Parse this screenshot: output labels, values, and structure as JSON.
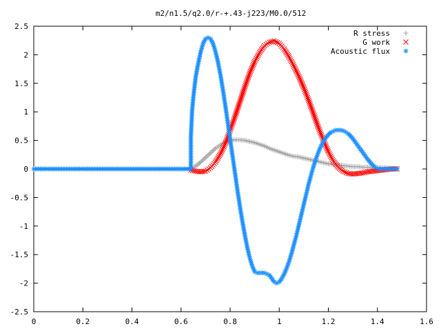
{
  "chart_data": {
    "type": "scatter",
    "title": "m2/n1.5/q2.0/r-+.43-j223/M0.0/512",
    "xlabel": "",
    "ylabel": "",
    "xlim": [
      0,
      1.6
    ],
    "ylim": [
      -2.5,
      2.5
    ],
    "x_ticks": [
      "0",
      "0.2",
      "0.4",
      "0.6",
      "0.8",
      "1",
      "1.2",
      "1.4",
      "1.6"
    ],
    "y_ticks": [
      "2.5",
      "2",
      "1.5",
      "1",
      "0.5",
      "0",
      "-0.5",
      "-1",
      "-1.5",
      "-2",
      "-2.5"
    ],
    "grid": false,
    "legend_position": "top-right",
    "series": [
      {
        "name": "R stress",
        "marker": "+",
        "color": "#a0a0a0",
        "x": [
          0.64,
          0.66,
          0.68,
          0.7,
          0.72,
          0.74,
          0.76,
          0.78,
          0.8,
          0.82,
          0.84,
          0.86,
          0.88,
          0.9,
          0.92,
          0.94,
          0.96,
          0.98,
          1.0,
          1.02,
          1.04,
          1.06,
          1.08,
          1.1,
          1.12,
          1.14,
          1.16,
          1.18,
          1.2,
          1.22,
          1.24,
          1.26,
          1.28,
          1.3,
          1.32,
          1.34,
          1.36,
          1.38,
          1.4,
          1.42,
          1.44,
          1.46,
          1.48
        ],
        "y": [
          0.0,
          0.05,
          0.12,
          0.2,
          0.28,
          0.36,
          0.42,
          0.47,
          0.5,
          0.51,
          0.51,
          0.5,
          0.48,
          0.46,
          0.43,
          0.4,
          0.36,
          0.33,
          0.3,
          0.27,
          0.24,
          0.22,
          0.21,
          0.19,
          0.17,
          0.15,
          0.13,
          0.11,
          0.09,
          0.08,
          0.07,
          0.06,
          0.05,
          0.04,
          0.04,
          0.03,
          0.03,
          0.02,
          0.02,
          0.02,
          0.02,
          0.01,
          0.01
        ]
      },
      {
        "name": "G work",
        "marker": "x",
        "color": "#ff0000",
        "x": [
          0.64,
          0.66,
          0.68,
          0.7,
          0.72,
          0.74,
          0.76,
          0.78,
          0.8,
          0.82,
          0.84,
          0.86,
          0.88,
          0.9,
          0.92,
          0.94,
          0.96,
          0.98,
          1.0,
          1.02,
          1.04,
          1.06,
          1.08,
          1.1,
          1.12,
          1.14,
          1.16,
          1.18,
          1.2,
          1.22,
          1.24,
          1.26,
          1.28,
          1.3,
          1.32,
          1.34,
          1.36,
          1.38,
          1.4,
          1.42,
          1.44,
          1.46,
          1.48
        ],
        "y": [
          -0.02,
          -0.04,
          -0.05,
          -0.04,
          0.02,
          0.12,
          0.26,
          0.44,
          0.68,
          0.92,
          1.18,
          1.44,
          1.68,
          1.88,
          2.04,
          2.16,
          2.22,
          2.24,
          2.2,
          2.1,
          1.96,
          1.8,
          1.62,
          1.42,
          1.2,
          0.96,
          0.72,
          0.5,
          0.3,
          0.14,
          0.03,
          -0.04,
          -0.08,
          -0.09,
          -0.08,
          -0.07,
          -0.05,
          -0.04,
          -0.03,
          -0.02,
          -0.01,
          0.0,
          0.0
        ]
      },
      {
        "name": "Acoustic flux",
        "marker": "*",
        "color": "#1e90ff",
        "x": [
          0.0,
          0.04,
          0.08,
          0.12,
          0.16,
          0.2,
          0.24,
          0.28,
          0.32,
          0.36,
          0.4,
          0.44,
          0.48,
          0.52,
          0.56,
          0.6,
          0.64,
          0.64,
          0.645,
          0.65,
          0.655,
          0.66,
          0.67,
          0.68,
          0.69,
          0.7,
          0.71,
          0.72,
          0.73,
          0.74,
          0.75,
          0.76,
          0.77,
          0.78,
          0.79,
          0.8,
          0.81,
          0.82,
          0.83,
          0.84,
          0.85,
          0.86,
          0.87,
          0.88,
          0.89,
          0.9,
          0.91,
          0.92,
          0.93,
          0.94,
          0.95,
          0.96,
          0.97,
          0.98,
          0.99,
          1.0,
          1.01,
          1.02,
          1.03,
          1.04,
          1.05,
          1.06,
          1.07,
          1.08,
          1.09,
          1.1,
          1.11,
          1.12,
          1.13,
          1.14,
          1.15,
          1.16,
          1.17,
          1.18,
          1.19,
          1.2,
          1.21,
          1.22,
          1.23,
          1.24,
          1.25,
          1.26,
          1.27,
          1.28,
          1.29,
          1.3,
          1.31,
          1.32,
          1.33,
          1.34,
          1.35,
          1.36,
          1.37,
          1.38,
          1.39,
          1.4,
          1.41,
          1.42,
          1.43,
          1.44,
          1.45,
          1.46,
          1.47,
          1.48
        ],
        "y": [
          0.0,
          0.0,
          0.0,
          0.0,
          0.0,
          0.0,
          0.0,
          0.0,
          0.0,
          0.0,
          0.0,
          0.0,
          0.0,
          0.0,
          0.0,
          0.0,
          0.0,
          0.55,
          1.02,
          1.25,
          1.45,
          1.62,
          1.85,
          2.05,
          2.2,
          2.28,
          2.3,
          2.28,
          2.2,
          2.06,
          1.88,
          1.66,
          1.4,
          1.12,
          0.82,
          0.52,
          0.22,
          -0.08,
          -0.38,
          -0.66,
          -0.92,
          -1.16,
          -1.38,
          -1.56,
          -1.7,
          -1.8,
          -1.82,
          -1.82,
          -1.82,
          -1.82,
          -1.84,
          -1.86,
          -1.92,
          -1.98,
          -2.0,
          -1.98,
          -1.92,
          -1.84,
          -1.74,
          -1.62,
          -1.48,
          -1.32,
          -1.16,
          -0.98,
          -0.8,
          -0.62,
          -0.44,
          -0.26,
          -0.1,
          0.05,
          0.18,
          0.3,
          0.4,
          0.48,
          0.55,
          0.6,
          0.64,
          0.66,
          0.68,
          0.68,
          0.68,
          0.67,
          0.65,
          0.62,
          0.58,
          0.53,
          0.47,
          0.41,
          0.35,
          0.29,
          0.23,
          0.17,
          0.12,
          0.07,
          0.03,
          0.01,
          0.0,
          0.0,
          0.0,
          0.0,
          0.0,
          0.0,
          0.0,
          0.0
        ]
      }
    ]
  }
}
